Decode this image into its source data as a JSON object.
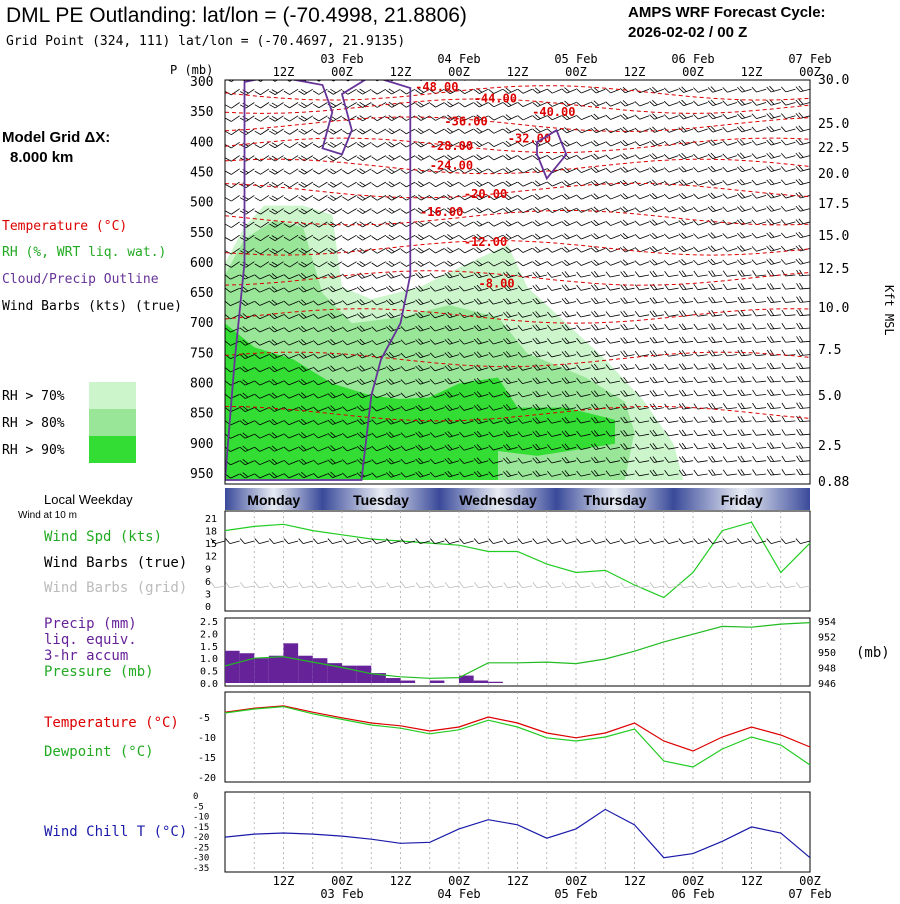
{
  "header": {
    "title": "DML PE Outlanding:  lat/lon = (-70.4998, 21.8806)",
    "subtitle": "Grid Point (324, 111) lat/lon = (-70.4697, 21.9135)",
    "cycle_line1": "AMPS WRF Forecast Cycle:",
    "cycle_line2": "2026-02-02 / 00  Z",
    "grid_label": "Model Grid ΔX:",
    "grid_value": "8.000 km"
  },
  "colors": {
    "rh70": "#ccf5cc",
    "rh80": "#99e699",
    "rh90": "#33dd33",
    "temperature": "#dd0000",
    "dewpoint": "#22cc22",
    "cloud_outline": "#663399",
    "windchill": "#1a1aaa",
    "precip": "#662299",
    "pressure": "#22bb22",
    "grid": "#999999"
  },
  "upper_legend": {
    "temperature": "Temperature (°C)",
    "rh": "RH (%, WRT liq. wat.)",
    "cloud": "Cloud/Precip Outline",
    "barbs": "Wind Barbs (kts) (true)"
  },
  "rh_legend": [
    "RH > 70%",
    "RH > 80%",
    "RH > 90%"
  ],
  "time_axis": {
    "top_hours": [
      "12Z",
      "00Z",
      "12Z",
      "00Z",
      "12Z",
      "00Z",
      "12Z",
      "00Z",
      "12Z",
      "00Z"
    ],
    "top_dates": [
      "03 Feb",
      "04 Feb",
      "05 Feb",
      "06 Feb",
      "07 Feb"
    ],
    "bottom_hours": [
      "12Z",
      "00Z",
      "12Z",
      "00Z",
      "12Z",
      "00Z",
      "12Z",
      "00Z",
      "12Z",
      "00Z"
    ],
    "bottom_dates": [
      "03 Feb",
      "04 Feb",
      "05 Feb",
      "06 Feb",
      "07 Feb"
    ]
  },
  "weekday": {
    "label": "Local Weekday",
    "days": [
      "Monday",
      "Tuesday",
      "Wednesday",
      "Thursday",
      "Friday"
    ]
  },
  "panel_labels": {
    "wind_at": "Wind at 10 m",
    "wspd": "Wind Spd (kts)",
    "barbs_true": "Wind Barbs (true)",
    "barbs_grid": "Wind Barbs (grid)",
    "precip1": "Precip (mm)",
    "precip2": "liq. equiv.",
    "precip3": "3-hr accum",
    "pressure": "Pressure (mb)",
    "pressure_unit": "(mb)",
    "temperature": "Temperature (°C)",
    "dewpoint": "Dewpoint (°C)",
    "windchill": "Wind Chill T (°C)"
  },
  "chart_data": [
    {
      "type": "heatmap",
      "name": "upper-air-time-height",
      "y_axis_label": "P (mb)",
      "right_axis_label": "Kft MSL",
      "pressure_ticks": [
        "300",
        "350",
        "400",
        "450",
        "500",
        "550",
        "600",
        "650",
        "700",
        "750",
        "800",
        "850",
        "900",
        "950"
      ],
      "height_ticks": [
        "30.0",
        "25.0",
        "22.5",
        "20.0",
        "17.5",
        "15.0",
        "12.5",
        "10.0",
        "7.5",
        "5.0",
        "2.5",
        "0.88"
      ],
      "temperature_labels": [
        "-52.00",
        "-48.00",
        "-44.00",
        "-40.00",
        "-36.00",
        "-32.00",
        "-28.00",
        "-24.00",
        "-20.00",
        "-16.00",
        "-12.00",
        "-8.00"
      ],
      "time_range_hours": [
        0,
        120
      ]
    },
    {
      "type": "line",
      "name": "wind-speed-10m",
      "ylim": [
        0,
        21
      ],
      "yticks": [
        "21",
        "18",
        "15",
        "12",
        "9",
        "6",
        "3",
        "0"
      ],
      "x_hours": [
        0,
        6,
        12,
        18,
        24,
        30,
        36,
        42,
        48,
        54,
        60,
        66,
        72,
        78,
        84,
        90,
        96,
        102,
        108,
        114,
        120
      ],
      "series": [
        {
          "values": [
            18,
            19,
            19.5,
            18,
            17,
            16,
            15.5,
            15,
            14.5,
            13,
            13,
            10,
            8,
            8.5,
            5,
            2,
            8,
            18,
            20,
            8,
            15
          ]
        }
      ]
    },
    {
      "type": "bar",
      "name": "precip-and-pressure",
      "ylim": [
        0,
        2.5
      ],
      "yticks": [
        "2.5",
        "2.0",
        "1.5",
        "1.0",
        "0.5",
        "0.0"
      ],
      "pressure_ticks": [
        "954",
        "952",
        "950",
        "948",
        "946"
      ],
      "pressure_range": [
        946,
        954
      ],
      "bar_hours": [
        0,
        3,
        6,
        9,
        12,
        15,
        18,
        21,
        24,
        27,
        30,
        33,
        36,
        39,
        42,
        45,
        48,
        51,
        54
      ],
      "precip": [
        1.3,
        1.2,
        1.0,
        1.1,
        1.6,
        1.1,
        1.0,
        0.8,
        0.7,
        0.7,
        0.4,
        0.2,
        0.1,
        0.0,
        0.1,
        0.0,
        0.3,
        0.1,
        0.05
      ],
      "pressure_hours": [
        0,
        6,
        12,
        18,
        24,
        30,
        36,
        42,
        48,
        54,
        60,
        66,
        72,
        78,
        84,
        90,
        96,
        102,
        108,
        114,
        120
      ],
      "pressure": [
        948.2,
        949.2,
        949.4,
        948.7,
        948.0,
        947.2,
        946.8,
        946.6,
        946.7,
        948.6,
        948.6,
        948.7,
        948.5,
        949.1,
        950.1,
        951.3,
        952.3,
        953.3,
        953.2,
        953.6,
        953.8
      ]
    },
    {
      "type": "line",
      "name": "temperature-dewpoint",
      "ylim": [
        -20,
        0
      ],
      "yticks": [
        "-5",
        "-10",
        "-15",
        "-20"
      ],
      "x_hours": [
        0,
        6,
        12,
        18,
        24,
        30,
        36,
        42,
        48,
        54,
        60,
        66,
        72,
        78,
        84,
        90,
        96,
        102,
        108,
        114,
        120
      ],
      "series": [
        {
          "name": "Temperature (°C)",
          "values": [
            -3.8,
            -2.8,
            -2.2,
            -3.8,
            -5.2,
            -6.5,
            -7.2,
            -8.5,
            -7.5,
            -5.0,
            -6.5,
            -9.0,
            -10.2,
            -9.0,
            -6.5,
            -11.0,
            -13.5,
            -10.0,
            -7.5,
            -9.5,
            -12.5
          ]
        },
        {
          "name": "Dewpoint (°C)",
          "values": [
            -4.0,
            -3.0,
            -2.4,
            -4.2,
            -5.6,
            -7.0,
            -7.8,
            -9.2,
            -8.2,
            -5.8,
            -7.5,
            -10.2,
            -11.0,
            -10.0,
            -8.0,
            -16.0,
            -17.5,
            -13.0,
            -10.0,
            -12.0,
            -17.0
          ]
        }
      ]
    },
    {
      "type": "line",
      "name": "wind-chill",
      "ylim": [
        -35,
        0
      ],
      "yticks": [
        "0",
        "-5",
        "-10",
        "-15",
        "-20",
        "-25",
        "-30",
        "-35"
      ],
      "x_hours": [
        0,
        6,
        12,
        18,
        24,
        30,
        36,
        42,
        48,
        54,
        60,
        66,
        72,
        78,
        84,
        90,
        96,
        102,
        108,
        114,
        120
      ],
      "series": [
        {
          "name": "Wind Chill T (°C)",
          "values": [
            -20,
            -18.5,
            -18,
            -18.5,
            -19.5,
            -21,
            -23,
            -22.5,
            -16,
            -11.5,
            -14,
            -20.5,
            -16,
            -6.5,
            -14,
            -30,
            -28,
            -22,
            -15,
            -18,
            -30
          ]
        }
      ]
    }
  ]
}
